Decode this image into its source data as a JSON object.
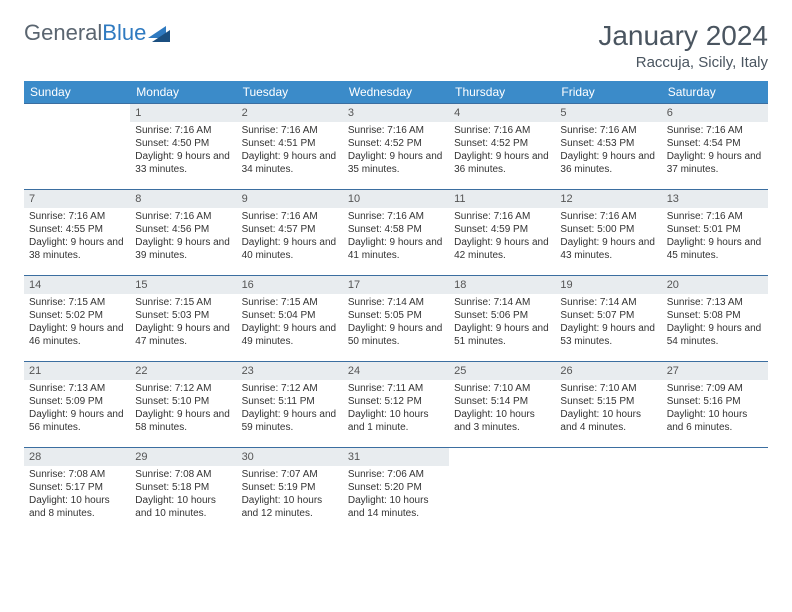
{
  "brand": {
    "part1": "General",
    "part2": "Blue"
  },
  "title": "January 2024",
  "location": "Raccuja, Sicily, Italy",
  "colors": {
    "header_bg": "#3b8bc9",
    "header_text": "#ffffff",
    "daynum_bg": "#e8ecef",
    "border": "#3b6ea0",
    "text": "#4a5560"
  },
  "weekdays": [
    "Sunday",
    "Monday",
    "Tuesday",
    "Wednesday",
    "Thursday",
    "Friday",
    "Saturday"
  ],
  "weeks": [
    [
      {
        "empty": true
      },
      {
        "n": "1",
        "sr": "Sunrise: 7:16 AM",
        "ss": "Sunset: 4:50 PM",
        "dl": "Daylight: 9 hours and 33 minutes."
      },
      {
        "n": "2",
        "sr": "Sunrise: 7:16 AM",
        "ss": "Sunset: 4:51 PM",
        "dl": "Daylight: 9 hours and 34 minutes."
      },
      {
        "n": "3",
        "sr": "Sunrise: 7:16 AM",
        "ss": "Sunset: 4:52 PM",
        "dl": "Daylight: 9 hours and 35 minutes."
      },
      {
        "n": "4",
        "sr": "Sunrise: 7:16 AM",
        "ss": "Sunset: 4:52 PM",
        "dl": "Daylight: 9 hours and 36 minutes."
      },
      {
        "n": "5",
        "sr": "Sunrise: 7:16 AM",
        "ss": "Sunset: 4:53 PM",
        "dl": "Daylight: 9 hours and 36 minutes."
      },
      {
        "n": "6",
        "sr": "Sunrise: 7:16 AM",
        "ss": "Sunset: 4:54 PM",
        "dl": "Daylight: 9 hours and 37 minutes."
      }
    ],
    [
      {
        "n": "7",
        "sr": "Sunrise: 7:16 AM",
        "ss": "Sunset: 4:55 PM",
        "dl": "Daylight: 9 hours and 38 minutes."
      },
      {
        "n": "8",
        "sr": "Sunrise: 7:16 AM",
        "ss": "Sunset: 4:56 PM",
        "dl": "Daylight: 9 hours and 39 minutes."
      },
      {
        "n": "9",
        "sr": "Sunrise: 7:16 AM",
        "ss": "Sunset: 4:57 PM",
        "dl": "Daylight: 9 hours and 40 minutes."
      },
      {
        "n": "10",
        "sr": "Sunrise: 7:16 AM",
        "ss": "Sunset: 4:58 PM",
        "dl": "Daylight: 9 hours and 41 minutes."
      },
      {
        "n": "11",
        "sr": "Sunrise: 7:16 AM",
        "ss": "Sunset: 4:59 PM",
        "dl": "Daylight: 9 hours and 42 minutes."
      },
      {
        "n": "12",
        "sr": "Sunrise: 7:16 AM",
        "ss": "Sunset: 5:00 PM",
        "dl": "Daylight: 9 hours and 43 minutes."
      },
      {
        "n": "13",
        "sr": "Sunrise: 7:16 AM",
        "ss": "Sunset: 5:01 PM",
        "dl": "Daylight: 9 hours and 45 minutes."
      }
    ],
    [
      {
        "n": "14",
        "sr": "Sunrise: 7:15 AM",
        "ss": "Sunset: 5:02 PM",
        "dl": "Daylight: 9 hours and 46 minutes."
      },
      {
        "n": "15",
        "sr": "Sunrise: 7:15 AM",
        "ss": "Sunset: 5:03 PM",
        "dl": "Daylight: 9 hours and 47 minutes."
      },
      {
        "n": "16",
        "sr": "Sunrise: 7:15 AM",
        "ss": "Sunset: 5:04 PM",
        "dl": "Daylight: 9 hours and 49 minutes."
      },
      {
        "n": "17",
        "sr": "Sunrise: 7:14 AM",
        "ss": "Sunset: 5:05 PM",
        "dl": "Daylight: 9 hours and 50 minutes."
      },
      {
        "n": "18",
        "sr": "Sunrise: 7:14 AM",
        "ss": "Sunset: 5:06 PM",
        "dl": "Daylight: 9 hours and 51 minutes."
      },
      {
        "n": "19",
        "sr": "Sunrise: 7:14 AM",
        "ss": "Sunset: 5:07 PM",
        "dl": "Daylight: 9 hours and 53 minutes."
      },
      {
        "n": "20",
        "sr": "Sunrise: 7:13 AM",
        "ss": "Sunset: 5:08 PM",
        "dl": "Daylight: 9 hours and 54 minutes."
      }
    ],
    [
      {
        "n": "21",
        "sr": "Sunrise: 7:13 AM",
        "ss": "Sunset: 5:09 PM",
        "dl": "Daylight: 9 hours and 56 minutes."
      },
      {
        "n": "22",
        "sr": "Sunrise: 7:12 AM",
        "ss": "Sunset: 5:10 PM",
        "dl": "Daylight: 9 hours and 58 minutes."
      },
      {
        "n": "23",
        "sr": "Sunrise: 7:12 AM",
        "ss": "Sunset: 5:11 PM",
        "dl": "Daylight: 9 hours and 59 minutes."
      },
      {
        "n": "24",
        "sr": "Sunrise: 7:11 AM",
        "ss": "Sunset: 5:12 PM",
        "dl": "Daylight: 10 hours and 1 minute."
      },
      {
        "n": "25",
        "sr": "Sunrise: 7:10 AM",
        "ss": "Sunset: 5:14 PM",
        "dl": "Daylight: 10 hours and 3 minutes."
      },
      {
        "n": "26",
        "sr": "Sunrise: 7:10 AM",
        "ss": "Sunset: 5:15 PM",
        "dl": "Daylight: 10 hours and 4 minutes."
      },
      {
        "n": "27",
        "sr": "Sunrise: 7:09 AM",
        "ss": "Sunset: 5:16 PM",
        "dl": "Daylight: 10 hours and 6 minutes."
      }
    ],
    [
      {
        "n": "28",
        "sr": "Sunrise: 7:08 AM",
        "ss": "Sunset: 5:17 PM",
        "dl": "Daylight: 10 hours and 8 minutes."
      },
      {
        "n": "29",
        "sr": "Sunrise: 7:08 AM",
        "ss": "Sunset: 5:18 PM",
        "dl": "Daylight: 10 hours and 10 minutes."
      },
      {
        "n": "30",
        "sr": "Sunrise: 7:07 AM",
        "ss": "Sunset: 5:19 PM",
        "dl": "Daylight: 10 hours and 12 minutes."
      },
      {
        "n": "31",
        "sr": "Sunrise: 7:06 AM",
        "ss": "Sunset: 5:20 PM",
        "dl": "Daylight: 10 hours and 14 minutes."
      },
      {
        "empty": true
      },
      {
        "empty": true
      },
      {
        "empty": true
      }
    ]
  ]
}
